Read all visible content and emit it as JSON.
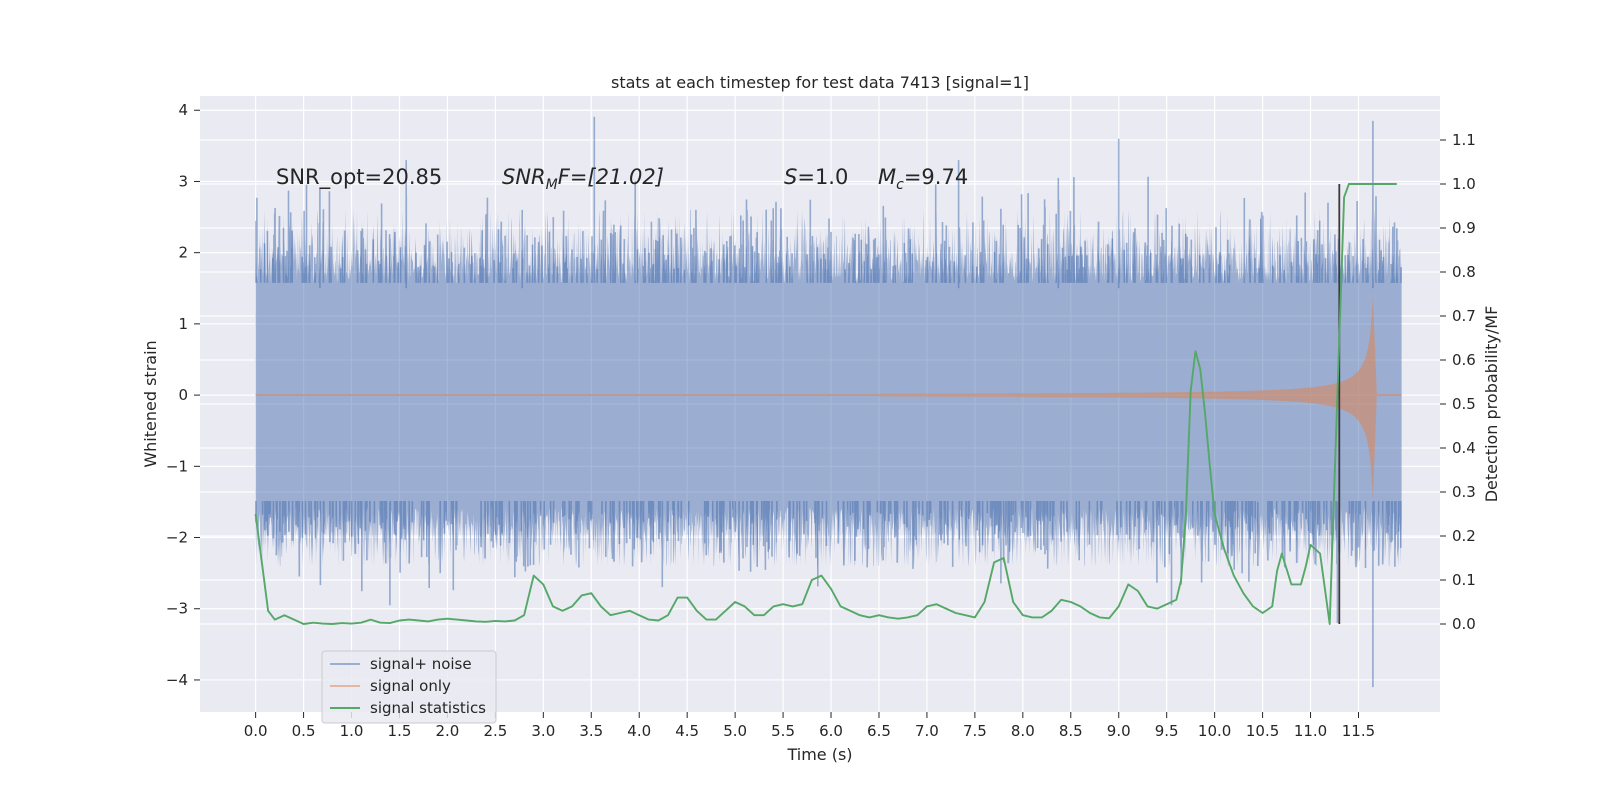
{
  "chart_data": {
    "type": "line",
    "title": "stats at each timestep for test data 7413 [signal=1]",
    "xlabel": "Time (s)",
    "ylabel_left": "Whitened strain",
    "ylabel_right": "Detection probability/MF",
    "xlim": [
      -0.58,
      12.35
    ],
    "ylim_left": [
      -4.45,
      4.2
    ],
    "ylim_right": [
      -0.2,
      1.2
    ],
    "xticks": [
      "0.0",
      "0.5",
      "1.0",
      "1.5",
      "2.0",
      "2.5",
      "3.0",
      "3.5",
      "4.0",
      "4.5",
      "5.0",
      "5.5",
      "6.0",
      "6.5",
      "7.0",
      "7.5",
      "8.0",
      "8.5",
      "9.0",
      "9.5",
      "10.0",
      "10.5",
      "11.0",
      "11.5"
    ],
    "yticks_left": [
      "4",
      "3",
      "2",
      "1",
      "0",
      "−1",
      "−2",
      "−3",
      "−4"
    ],
    "yticks_right": [
      "1.1",
      "1.0",
      "0.9",
      "0.8",
      "0.7",
      "0.6",
      "0.5",
      "0.4",
      "0.3",
      "0.2",
      "0.1",
      "0.0"
    ],
    "grid": true,
    "legend_position": "lower-left",
    "annotations": [
      {
        "id": "snr-opt",
        "text": "SNR_opt=20.85"
      },
      {
        "id": "snr-mf",
        "base": "SNR",
        "sub": "M",
        "rest": "F=[21.02]"
      },
      {
        "id": "s-val",
        "base": "S",
        "rest": "=1.0"
      },
      {
        "id": "mc-val",
        "base": "M",
        "sub": "c",
        "rest": "=9.74"
      }
    ],
    "series": [
      {
        "name": "signal+ noise",
        "color": "#4c72b0",
        "axis": "left",
        "kind": "noise",
        "t_range": [
          0.0,
          11.95
        ],
        "envelope": 1.75,
        "peaks": [
          {
            "t": 1.57,
            "y": 3.3
          },
          {
            "t": 0.67,
            "y": 2.9
          },
          {
            "t": 2.78,
            "y": 2.6
          },
          {
            "t": 7.33,
            "y": 3.3
          },
          {
            "t": 8.37,
            "y": 3.05
          },
          {
            "t": 9.0,
            "y": 3.6
          },
          {
            "t": 11.65,
            "y": 3.85
          },
          {
            "t": 11.65,
            "y": -4.1
          },
          {
            "t": 1.4,
            "y": -2.95
          },
          {
            "t": 9.55,
            "y": -2.95
          },
          {
            "t": 11.28,
            "y": -3.2
          },
          {
            "t": 10.45,
            "y": -2.4
          }
        ]
      },
      {
        "name": "signal only",
        "color": "#dd8452",
        "axis": "left",
        "kind": "chirp",
        "t_start": 6.5,
        "t_merge": 11.65,
        "t_end": 11.95,
        "peak_amplitude": 2.2
      },
      {
        "name": "signal statistics",
        "color": "#55a868",
        "axis": "right",
        "kind": "line",
        "x": [
          0.0,
          0.13,
          0.2,
          0.3,
          0.4,
          0.5,
          0.6,
          0.7,
          0.8,
          0.9,
          1.0,
          1.1,
          1.2,
          1.3,
          1.4,
          1.5,
          1.6,
          1.7,
          1.8,
          1.9,
          2.0,
          2.1,
          2.2,
          2.3,
          2.4,
          2.5,
          2.6,
          2.7,
          2.8,
          2.9,
          3.0,
          3.1,
          3.2,
          3.3,
          3.4,
          3.5,
          3.6,
          3.7,
          3.8,
          3.9,
          4.0,
          4.1,
          4.2,
          4.3,
          4.4,
          4.5,
          4.6,
          4.7,
          4.8,
          4.9,
          5.0,
          5.1,
          5.2,
          5.3,
          5.4,
          5.5,
          5.6,
          5.7,
          5.8,
          5.9,
          6.0,
          6.1,
          6.2,
          6.3,
          6.4,
          6.5,
          6.6,
          6.7,
          6.8,
          6.9,
          7.0,
          7.1,
          7.2,
          7.3,
          7.4,
          7.5,
          7.6,
          7.7,
          7.8,
          7.9,
          8.0,
          8.1,
          8.2,
          8.3,
          8.4,
          8.5,
          8.6,
          8.7,
          8.8,
          8.9,
          9.0,
          9.1,
          9.2,
          9.3,
          9.4,
          9.5,
          9.6,
          9.65,
          9.7,
          9.75,
          9.8,
          9.85,
          9.9,
          9.95,
          10.0,
          10.1,
          10.2,
          10.3,
          10.4,
          10.5,
          10.6,
          10.65,
          10.7,
          10.8,
          10.9,
          10.95,
          11.0,
          11.1,
          11.2,
          11.3,
          11.35,
          11.4,
          11.45,
          11.5,
          11.6,
          11.7,
          11.8,
          11.9
        ],
        "y": [
          0.25,
          0.03,
          0.01,
          0.02,
          0.01,
          0.0,
          0.003,
          0.001,
          0.0,
          0.002,
          0.001,
          0.003,
          0.01,
          0.003,
          0.002,
          0.008,
          0.01,
          0.008,
          0.006,
          0.01,
          0.012,
          0.01,
          0.008,
          0.006,
          0.005,
          0.007,
          0.006,
          0.008,
          0.02,
          0.11,
          0.09,
          0.04,
          0.03,
          0.04,
          0.065,
          0.07,
          0.04,
          0.02,
          0.025,
          0.03,
          0.02,
          0.01,
          0.008,
          0.02,
          0.06,
          0.06,
          0.03,
          0.01,
          0.01,
          0.03,
          0.05,
          0.04,
          0.02,
          0.02,
          0.04,
          0.045,
          0.04,
          0.045,
          0.1,
          0.11,
          0.08,
          0.04,
          0.03,
          0.02,
          0.015,
          0.02,
          0.015,
          0.012,
          0.015,
          0.02,
          0.04,
          0.045,
          0.035,
          0.025,
          0.02,
          0.015,
          0.05,
          0.14,
          0.15,
          0.05,
          0.02,
          0.015,
          0.015,
          0.03,
          0.055,
          0.05,
          0.04,
          0.025,
          0.015,
          0.013,
          0.04,
          0.09,
          0.075,
          0.04,
          0.035,
          0.045,
          0.055,
          0.1,
          0.25,
          0.53,
          0.62,
          0.58,
          0.48,
          0.36,
          0.25,
          0.17,
          0.11,
          0.07,
          0.04,
          0.025,
          0.04,
          0.12,
          0.16,
          0.09,
          0.09,
          0.13,
          0.18,
          0.16,
          0.0,
          0.65,
          0.97,
          1.0,
          1.0,
          1.0,
          1.0,
          1.0,
          1.0,
          1.0
        ]
      }
    ],
    "vline": {
      "x": 11.3,
      "ymin": 0.0,
      "ymax": 1.0,
      "color": "#3a3a3a",
      "axis": "right"
    }
  }
}
